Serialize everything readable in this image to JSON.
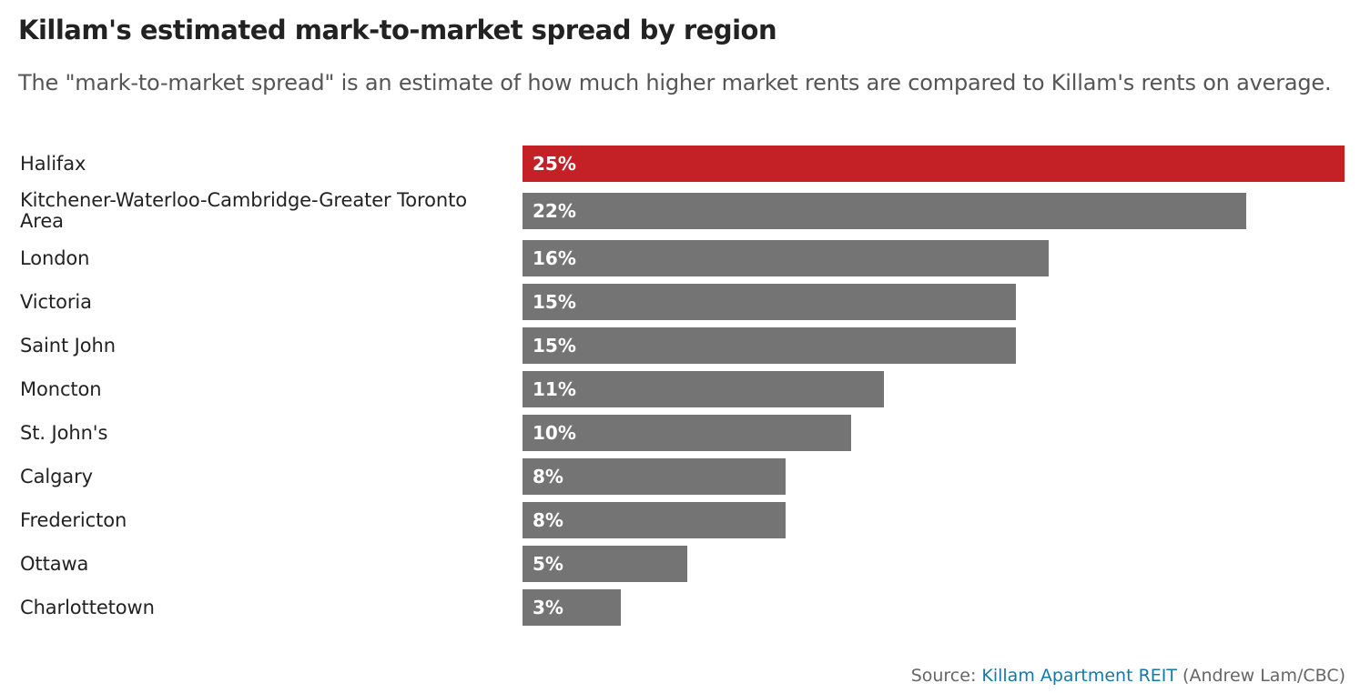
{
  "chart_data": {
    "type": "bar",
    "orientation": "horizontal",
    "title": "Killam's estimated mark-to-market spread by region",
    "subtitle": "The \"mark-to-market spread\" is an estimate of how much higher market rents are compared to Killam's rents on average.",
    "categories": [
      "Halifax",
      "Kitchener-Waterloo-Cambridge-Greater Toronto Area",
      "London",
      "Victoria",
      "Saint John",
      "Moncton",
      "St. John's",
      "Calgary",
      "Fredericton",
      "Ottawa",
      "Charlottetown"
    ],
    "values": [
      25,
      22,
      16,
      15,
      15,
      11,
      10,
      8,
      8,
      5,
      3
    ],
    "value_labels": [
      "25%",
      "22%",
      "16%",
      "15%",
      "15%",
      "11%",
      "10%",
      "8%",
      "8%",
      "5%",
      "3%"
    ],
    "unit": "%",
    "xlim": [
      0,
      25
    ],
    "grid": false,
    "highlight_index": 0,
    "colors": {
      "highlight": "#c42127",
      "default": "#747474",
      "value_text": "#ffffff"
    }
  },
  "source": {
    "prefix": "Source: ",
    "link_text": "Killam Apartment REIT",
    "suffix": " (Andrew Lam/CBC)",
    "link_color": "#1579a8"
  }
}
